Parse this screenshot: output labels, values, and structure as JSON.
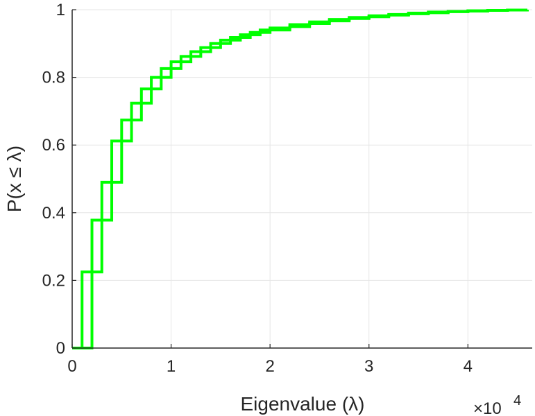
{
  "chart_data": {
    "type": "line",
    "xlabel": "Eigenvalue (λ)",
    "ylabel": "P(x ≤ λ)",
    "x_exponent_label": "×10",
    "x_exponent_power": "4",
    "xlim": [
      0,
      46500
    ],
    "ylim": [
      0,
      1
    ],
    "x_ticks": [
      0,
      10000,
      20000,
      30000,
      40000
    ],
    "x_tick_labels": [
      "0",
      "1",
      "2",
      "3",
      "4"
    ],
    "y_ticks": [
      0,
      0.2,
      0.4,
      0.6,
      0.8,
      1
    ],
    "y_tick_labels": [
      "0",
      "0.2",
      "0.4",
      "0.6",
      "0.8",
      "1"
    ],
    "grid": true,
    "line_color": "#00ff00",
    "step": true,
    "series": [
      {
        "x": [
          0,
          1000,
          2000,
          3000,
          4000,
          5000,
          6000,
          7000,
          8000,
          9000,
          10000,
          11000,
          12000,
          13000,
          14000,
          15000,
          16000,
          17000,
          18000,
          19000,
          20000,
          22000,
          24000,
          26000,
          28000,
          30000,
          32000,
          34000,
          36000,
          38000,
          40000,
          42000,
          44000,
          46000
        ],
        "y": [
          0,
          0.225,
          0.378,
          0.49,
          0.612,
          0.674,
          0.724,
          0.766,
          0.8,
          0.826,
          0.846,
          0.862,
          0.876,
          0.888,
          0.9,
          0.91,
          0.918,
          0.926,
          0.933,
          0.94,
          0.946,
          0.956,
          0.964,
          0.971,
          0.977,
          0.982,
          0.986,
          0.99,
          0.993,
          0.995,
          0.997,
          0.998,
          0.999,
          1.0
        ]
      },
      {
        "x": [
          0,
          2000,
          3000,
          4000,
          5000,
          6000,
          7000,
          8000,
          9000,
          10000,
          11000,
          12000,
          13000,
          14000,
          15000,
          16000,
          17000,
          18000,
          19000,
          20000,
          22000,
          24000,
          26000,
          28000,
          30000,
          32000,
          34000,
          36000,
          38000,
          40000,
          42000,
          44000,
          46000
        ],
        "y": [
          0,
          0.225,
          0.378,
          0.49,
          0.612,
          0.674,
          0.724,
          0.766,
          0.8,
          0.826,
          0.846,
          0.862,
          0.876,
          0.888,
          0.9,
          0.91,
          0.918,
          0.926,
          0.933,
          0.94,
          0.95,
          0.959,
          0.967,
          0.974,
          0.979,
          0.984,
          0.988,
          0.991,
          0.994,
          0.996,
          0.998,
          0.999,
          1.0
        ]
      }
    ]
  }
}
